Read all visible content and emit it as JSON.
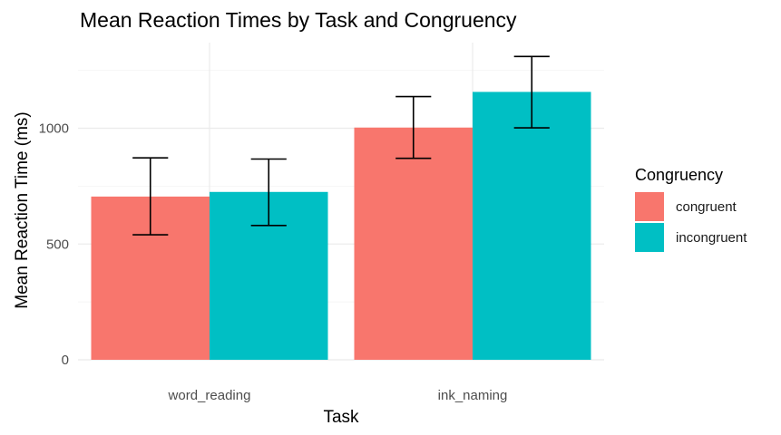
{
  "chart_data": {
    "type": "bar",
    "title": "Mean Reaction Times by Task and Congruency",
    "xlabel": "Task",
    "ylabel": "Mean Reaction Time (ms)",
    "categories": [
      "word_reading",
      "ink_naming"
    ],
    "series": [
      {
        "name": "congruent",
        "color": "#F8766D",
        "values": [
          705,
          1003
        ],
        "error_low": [
          540,
          870
        ],
        "error_high": [
          872,
          1137
        ]
      },
      {
        "name": "incongruent",
        "color": "#00BFC4",
        "values": [
          725,
          1157
        ],
        "error_low": [
          580,
          1002
        ],
        "error_high": [
          867,
          1310
        ]
      }
    ],
    "ylim": [
      0,
      1370
    ],
    "yticks": [
      0,
      500,
      1000
    ],
    "grid": true,
    "legend": {
      "title": "Congruency",
      "position": "right"
    }
  }
}
